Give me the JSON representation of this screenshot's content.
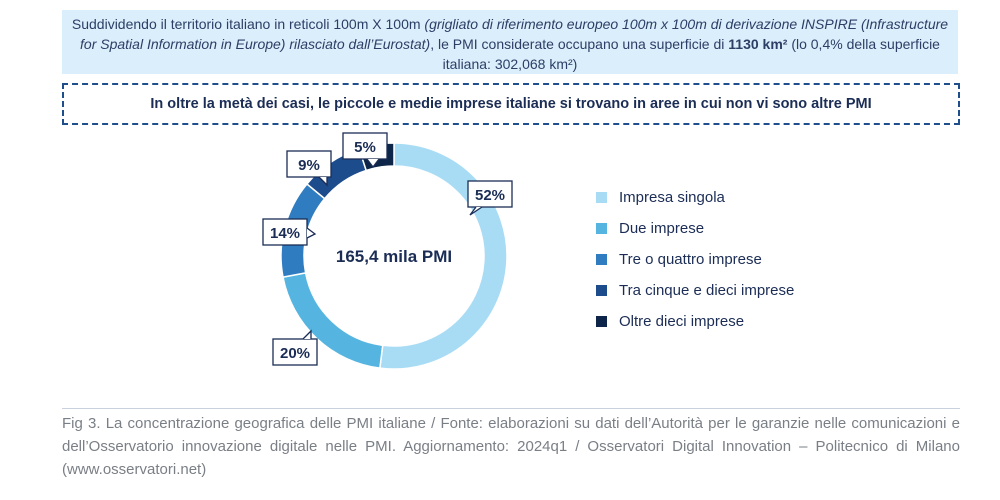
{
  "info": {
    "part1": "Suddividendo il territorio italiano in reticoli 100m X 100m ",
    "part2_italic": "(grigliato di riferimento europeo 100m x 100m di derivazione INSPIRE (Infrastructure for Spatial Information in Europe) rilasciato dall’Eurostat)",
    "part3": ", le PMI considerate occupano una superficie di ",
    "part4_bold": "1130 km²",
    "part5": " (lo 0,4% della superficie italiana: 302,068 km²)"
  },
  "callout": "In oltre la metà dei casi, le piccole e medie imprese italiane si trovano in aree in cui non vi sono altre PMI",
  "chart_data": {
    "type": "pie",
    "center_label": "165,4 mila PMI",
    "categories": [
      "Impresa singola",
      "Due imprese",
      "Tre o quattro imprese",
      "Tra cinque e dieci imprese",
      "Oltre dieci imprese"
    ],
    "values": [
      52,
      20,
      14,
      9,
      5
    ],
    "value_labels": [
      "52%",
      "20%",
      "14%",
      "9%",
      "5%"
    ],
    "colors": [
      "#a8dcf5",
      "#55b5e0",
      "#2f7cc0",
      "#1c4c8c",
      "#0d2548"
    ],
    "legend_position": "right"
  },
  "caption": "Fig 3. La concentrazione geografica delle PMI italiane / Fonte: elaborazioni su dati dell’Autorità per le garanzie nelle comunicazioni e dell’Osservatorio innovazione digitale nelle PMI. Aggiornamento: 2024q1 / Osservatori Digital Innovation – Politecnico di Milano (www.osservatori.net)"
}
